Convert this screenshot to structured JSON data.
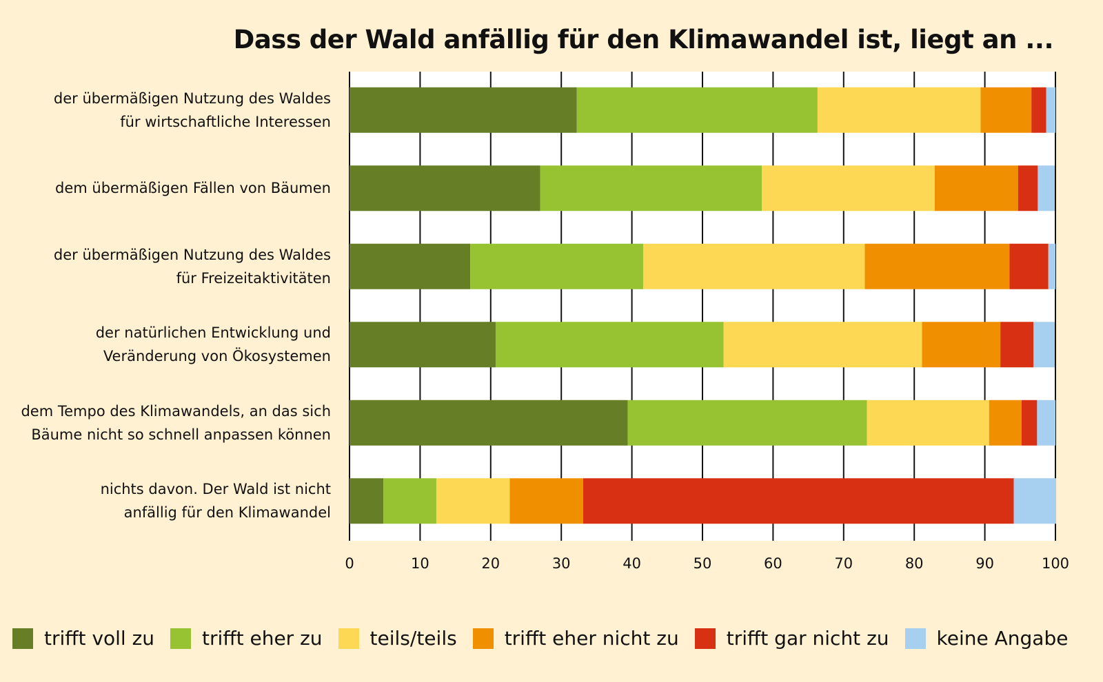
{
  "chart_data": {
    "type": "bar",
    "orientation": "horizontal",
    "stacked": true,
    "title": "Dass der Wald anfällig für den Klimawandel ist, liegt an ...",
    "categories": [
      [
        "der übermäßigen Nutzung des Waldes",
        "für wirtschaftliche Interessen"
      ],
      [
        "dem übermäßigen Fällen von Bäumen"
      ],
      [
        "der übermäßigen Nutzung des Waldes",
        "für Freizeitaktivitäten"
      ],
      [
        "der natürlichen Entwicklung und",
        "Veränderung von Ökosystemen"
      ],
      [
        "dem Tempo des Klimawandels, an das sich",
        "Bäume nicht so schnell anpassen können"
      ],
      [
        "nichts davon. Der Wald ist nicht",
        "anfällig für den Klimawandel"
      ]
    ],
    "series": [
      {
        "name": "trifft voll zu",
        "color": "#667f27",
        "values": [
          32.2,
          27.0,
          17.1,
          20.7,
          39.4,
          4.8
        ]
      },
      {
        "name": "trifft eher zu",
        "color": "#97c232",
        "values": [
          34.1,
          31.4,
          24.5,
          32.3,
          33.9,
          7.5
        ]
      },
      {
        "name": "teils/teils",
        "color": "#fdd855",
        "values": [
          23.1,
          24.5,
          31.4,
          28.1,
          17.3,
          10.4
        ]
      },
      {
        "name": "trifft eher nicht zu",
        "color": "#f09000",
        "values": [
          7.2,
          11.8,
          20.5,
          11.1,
          4.6,
          10.4
        ]
      },
      {
        "name": "trifft gar nicht zu",
        "color": "#d83012",
        "values": [
          2.1,
          2.8,
          5.5,
          4.7,
          2.2,
          61.0
        ]
      },
      {
        "name": "keine Angabe",
        "color": "#a7d0f0",
        "values": [
          1.3,
          2.4,
          1.0,
          3.0,
          2.6,
          6.0
        ]
      }
    ],
    "xticks": [
      "0",
      "10",
      "20",
      "30",
      "40",
      "50",
      "60",
      "70",
      "80",
      "90",
      "100"
    ],
    "grid": "vertical",
    "legend": "bottom"
  }
}
